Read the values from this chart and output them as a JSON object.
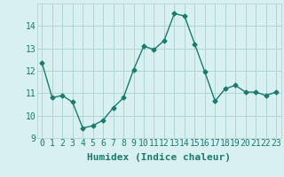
{
  "x": [
    0,
    1,
    2,
    3,
    4,
    5,
    6,
    7,
    8,
    9,
    10,
    11,
    12,
    13,
    14,
    15,
    16,
    17,
    18,
    19,
    20,
    21,
    22,
    23
  ],
  "y": [
    12.35,
    10.8,
    10.9,
    10.6,
    9.45,
    9.55,
    9.8,
    10.35,
    10.8,
    12.05,
    13.1,
    12.95,
    13.35,
    14.55,
    14.45,
    13.2,
    11.95,
    10.65,
    11.2,
    11.35,
    11.05,
    11.05,
    10.9,
    11.05
  ],
  "line_color": "#1a7a6e",
  "marker": "D",
  "marker_size": 2.5,
  "bg_color": "#d8f0f0",
  "grid_color": "#aacfcf",
  "xlabel": "Humidex (Indice chaleur)",
  "xlabel_fontsize": 8,
  "tick_fontsize": 7,
  "ylim": [
    9,
    15
  ],
  "xlim": [
    -0.5,
    23.5
  ],
  "yticks": [
    9,
    10,
    11,
    12,
    13,
    14
  ],
  "linewidth": 1.0
}
